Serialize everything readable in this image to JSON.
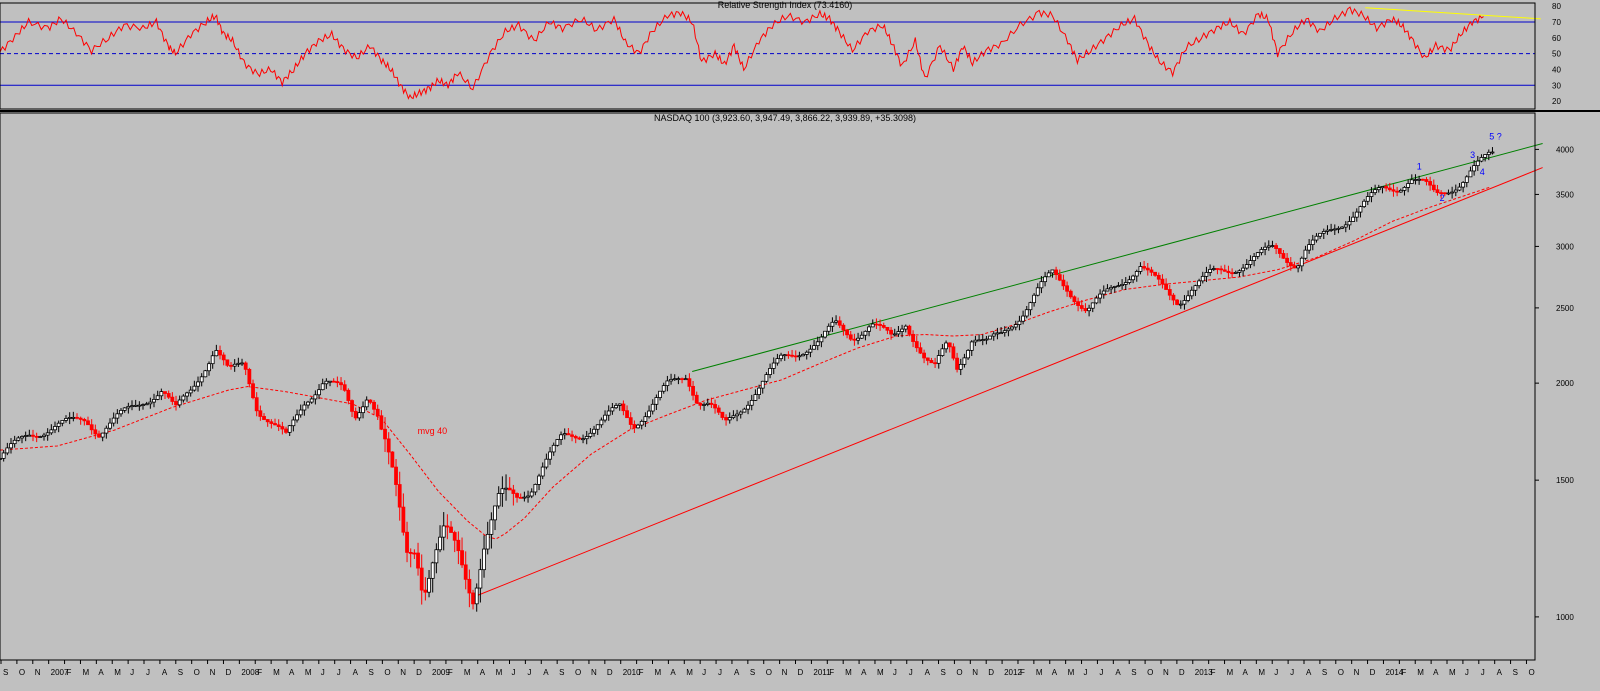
{
  "colors": {
    "background": "#c0c0c0",
    "up_candle": "#000000",
    "down_candle": "#ff0000",
    "rsi_line": "#ff0000",
    "rsi_band": "#0000cc",
    "upper_trendline": "#008000",
    "lower_trendline": "#ff0000",
    "rsi_trendline": "#ffff00",
    "wave_labels": "#0000ff",
    "ma_line": "#ff0000"
  },
  "chart_data": [
    {
      "type": "line",
      "title": "Relative Strength Index (73.4160)",
      "ylim": [
        15,
        82
      ],
      "yticks": [
        20,
        30,
        40,
        50,
        60,
        70,
        80
      ],
      "bands": [
        70,
        50,
        30
      ],
      "x_range": [
        "2006-08-25",
        "2014-09-26"
      ],
      "series": [
        {
          "values": [
            [
              2006.7,
              51
            ],
            [
              2006.78,
              61
            ],
            [
              2006.85,
              70
            ],
            [
              2006.95,
              66
            ],
            [
              2007.02,
              72
            ],
            [
              2007.1,
              63
            ],
            [
              2007.18,
              52
            ],
            [
              2007.27,
              60
            ],
            [
              2007.35,
              68
            ],
            [
              2007.45,
              66
            ],
            [
              2007.52,
              70
            ],
            [
              2007.58,
              55
            ],
            [
              2007.62,
              50
            ],
            [
              2007.7,
              62
            ],
            [
              2007.78,
              70
            ],
            [
              2007.83,
              74
            ],
            [
              2007.87,
              63
            ],
            [
              2007.92,
              58
            ],
            [
              2007.98,
              44
            ],
            [
              2008.05,
              37
            ],
            [
              2008.12,
              40
            ],
            [
              2008.18,
              32
            ],
            [
              2008.24,
              40
            ],
            [
              2008.3,
              50
            ],
            [
              2008.37,
              58
            ],
            [
              2008.44,
              62
            ],
            [
              2008.5,
              53
            ],
            [
              2008.57,
              47
            ],
            [
              2008.64,
              55
            ],
            [
              2008.7,
              46
            ],
            [
              2008.75,
              40
            ],
            [
              2008.8,
              30
            ],
            [
              2008.85,
              22
            ],
            [
              2008.9,
              25
            ],
            [
              2008.95,
              28
            ],
            [
              2009.0,
              33
            ],
            [
              2009.05,
              30
            ],
            [
              2009.1,
              38
            ],
            [
              2009.18,
              28
            ],
            [
              2009.27,
              50
            ],
            [
              2009.35,
              64
            ],
            [
              2009.42,
              68
            ],
            [
              2009.5,
              58
            ],
            [
              2009.58,
              70
            ],
            [
              2009.65,
              66
            ],
            [
              2009.75,
              72
            ],
            [
              2009.83,
              65
            ],
            [
              2009.92,
              72
            ],
            [
              2009.98,
              57
            ],
            [
              2010.05,
              50
            ],
            [
              2010.12,
              64
            ],
            [
              2010.2,
              74
            ],
            [
              2010.27,
              76
            ],
            [
              2010.33,
              70
            ],
            [
              2010.38,
              45
            ],
            [
              2010.45,
              50
            ],
            [
              2010.5,
              43
            ],
            [
              2010.55,
              55
            ],
            [
              2010.6,
              40
            ],
            [
              2010.68,
              58
            ],
            [
              2010.75,
              68
            ],
            [
              2010.83,
              74
            ],
            [
              2010.92,
              70
            ],
            [
              2011.0,
              75
            ],
            [
              2011.05,
              72
            ],
            [
              2011.1,
              64
            ],
            [
              2011.17,
              52
            ],
            [
              2011.25,
              64
            ],
            [
              2011.33,
              68
            ],
            [
              2011.38,
              56
            ],
            [
              2011.43,
              42
            ],
            [
              2011.5,
              58
            ],
            [
              2011.55,
              34
            ],
            [
              2011.63,
              55
            ],
            [
              2011.7,
              40
            ],
            [
              2011.75,
              55
            ],
            [
              2011.8,
              44
            ],
            [
              2011.87,
              52
            ],
            [
              2011.95,
              56
            ],
            [
              2012.05,
              68
            ],
            [
              2012.15,
              76
            ],
            [
              2012.22,
              74
            ],
            [
              2012.3,
              58
            ],
            [
              2012.35,
              46
            ],
            [
              2012.42,
              52
            ],
            [
              2012.5,
              60
            ],
            [
              2012.58,
              68
            ],
            [
              2012.65,
              72
            ],
            [
              2012.72,
              56
            ],
            [
              2012.78,
              45
            ],
            [
              2012.85,
              38
            ],
            [
              2012.92,
              54
            ],
            [
              2013.0,
              60
            ],
            [
              2013.08,
              66
            ],
            [
              2013.15,
              70
            ],
            [
              2013.22,
              62
            ],
            [
              2013.3,
              75
            ],
            [
              2013.35,
              72
            ],
            [
              2013.4,
              50
            ],
            [
              2013.48,
              64
            ],
            [
              2013.55,
              72
            ],
            [
              2013.62,
              64
            ],
            [
              2013.7,
              72
            ],
            [
              2013.78,
              78
            ],
            [
              2013.85,
              74
            ],
            [
              2013.92,
              66
            ],
            [
              2014.0,
              72
            ],
            [
              2014.05,
              68
            ],
            [
              2014.1,
              60
            ],
            [
              2014.17,
              47
            ],
            [
              2014.23,
              55
            ],
            [
              2014.3,
              52
            ],
            [
              2014.36,
              62
            ],
            [
              2014.42,
              70
            ],
            [
              2014.48,
              73.4
            ]
          ]
        }
      ],
      "trendline": [
        [
          2013.86,
          79
        ],
        [
          2014.78,
          72
        ]
      ]
    },
    {
      "type": "candlestick",
      "title": "NASDAQ 100 (3,923.60, 3,947.49, 3,866.22, 3,939.89, +35.3098)",
      "y_scale": "log",
      "ylim": [
        880,
        4300
      ],
      "yticks": [
        1000,
        1500,
        2000,
        2500,
        3000,
        3500,
        4000
      ],
      "x_labels": [
        "S",
        "O",
        "N",
        "2007",
        "F",
        "M",
        "A",
        "M",
        "J",
        "J",
        "A",
        "S",
        "O",
        "N",
        "D",
        "2008",
        "F",
        "M",
        "A",
        "M",
        "J",
        "J",
        "A",
        "S",
        "O",
        "N",
        "D",
        "2009",
        "F",
        "M",
        "A",
        "M",
        "J",
        "J",
        "A",
        "S",
        "O",
        "N",
        "D",
        "2010",
        "F",
        "M",
        "A",
        "M",
        "J",
        "J",
        "A",
        "S",
        "O",
        "N",
        "D",
        "2011",
        "F",
        "M",
        "A",
        "M",
        "J",
        "J",
        "A",
        "S",
        "O",
        "N",
        "D",
        "2012",
        "F",
        "M",
        "A",
        "M",
        "J",
        "J",
        "A",
        "S",
        "O",
        "N",
        "D",
        "2013",
        "F",
        "M",
        "A",
        "M",
        "J",
        "J",
        "A",
        "S",
        "O",
        "N",
        "D",
        "2014",
        "F",
        "M",
        "A",
        "M",
        "J",
        "J",
        "A",
        "S",
        "O"
      ],
      "x_start": "2006-09-01",
      "price_path": [
        [
          2006.7,
          1600
        ],
        [
          2006.85,
          1720
        ],
        [
          2007.0,
          1760
        ],
        [
          2007.15,
          1800
        ],
        [
          2007.22,
          1730
        ],
        [
          2007.3,
          1790
        ],
        [
          2007.45,
          1900
        ],
        [
          2007.55,
          1960
        ],
        [
          2007.62,
          1840
        ],
        [
          2007.7,
          1960
        ],
        [
          2007.83,
          2220
        ],
        [
          2007.9,
          2060
        ],
        [
          2007.98,
          2120
        ],
        [
          2008.05,
          1860
        ],
        [
          2008.12,
          1780
        ],
        [
          2008.2,
          1700
        ],
        [
          2008.3,
          1900
        ],
        [
          2008.4,
          2020
        ],
        [
          2008.5,
          1950
        ],
        [
          2008.56,
          1800
        ],
        [
          2008.63,
          1950
        ],
        [
          2008.68,
          1830
        ],
        [
          2008.72,
          1660
        ],
        [
          2008.78,
          1410
        ],
        [
          2008.83,
          1200
        ],
        [
          2008.88,
          1250
        ],
        [
          2008.92,
          1100
        ],
        [
          2008.97,
          1190
        ],
        [
          2009.03,
          1270
        ],
        [
          2009.1,
          1200
        ],
        [
          2009.18,
          1080
        ],
        [
          2009.24,
          1260
        ],
        [
          2009.32,
          1400
        ],
        [
          2009.4,
          1420
        ],
        [
          2009.48,
          1460
        ],
        [
          2009.55,
          1570
        ],
        [
          2009.65,
          1700
        ],
        [
          2009.75,
          1720
        ],
        [
          2009.85,
          1780
        ],
        [
          2009.95,
          1860
        ],
        [
          2010.02,
          1770
        ],
        [
          2010.1,
          1850
        ],
        [
          2010.2,
          1980
        ],
        [
          2010.3,
          2050
        ],
        [
          2010.36,
          1900
        ],
        [
          2010.42,
          1880
        ],
        [
          2010.5,
          1760
        ],
        [
          2010.58,
          1850
        ],
        [
          2010.68,
          1980
        ],
        [
          2010.8,
          2150
        ],
        [
          2010.92,
          2220
        ],
        [
          2011.0,
          2260
        ],
        [
          2011.08,
          2380
        ],
        [
          2011.17,
          2300
        ],
        [
          2011.27,
          2380
        ],
        [
          2011.38,
          2280
        ],
        [
          2011.45,
          2400
        ],
        [
          2011.55,
          2150
        ],
        [
          2011.6,
          2080
        ],
        [
          2011.67,
          2250
        ],
        [
          2011.72,
          2100
        ],
        [
          2011.8,
          2300
        ],
        [
          2011.87,
          2250
        ],
        [
          2011.95,
          2300
        ],
        [
          2012.05,
          2450
        ],
        [
          2012.15,
          2650
        ],
        [
          2012.22,
          2760
        ],
        [
          2012.3,
          2650
        ],
        [
          2012.4,
          2480
        ],
        [
          2012.5,
          2600
        ],
        [
          2012.62,
          2760
        ],
        [
          2012.68,
          2840
        ],
        [
          2012.75,
          2720
        ],
        [
          2012.83,
          2600
        ],
        [
          2012.88,
          2550
        ],
        [
          2012.95,
          2660
        ],
        [
          2013.05,
          2760
        ],
        [
          2013.15,
          2800
        ],
        [
          2013.28,
          2900
        ],
        [
          2013.38,
          2980
        ],
        [
          2013.45,
          2900
        ],
        [
          2013.5,
          2850
        ],
        [
          2013.55,
          2980
        ],
        [
          2013.65,
          3100
        ],
        [
          2013.75,
          3240
        ],
        [
          2013.85,
          3400
        ],
        [
          2013.95,
          3550
        ],
        [
          2014.03,
          3580
        ],
        [
          2014.1,
          3680
        ],
        [
          2014.17,
          3600
        ],
        [
          2014.23,
          3480
        ],
        [
          2014.3,
          3560
        ],
        [
          2014.36,
          3640
        ],
        [
          2014.42,
          3760
        ],
        [
          2014.48,
          3860
        ],
        [
          2014.52,
          3940
        ]
      ],
      "moving_average": {
        "label": "mvg 40",
        "values": [
          [
            2006.7,
            1640
          ],
          [
            2007.0,
            1660
          ],
          [
            2007.3,
            1740
          ],
          [
            2007.6,
            1860
          ],
          [
            2007.9,
            1960
          ],
          [
            2008.0,
            1980
          ],
          [
            2008.2,
            1950
          ],
          [
            2008.4,
            1910
          ],
          [
            2008.55,
            1880
          ],
          [
            2008.7,
            1800
          ],
          [
            2008.85,
            1620
          ],
          [
            2009.0,
            1450
          ],
          [
            2009.15,
            1330
          ],
          [
            2009.25,
            1270
          ],
          [
            2009.3,
            1260
          ],
          [
            2009.35,
            1280
          ],
          [
            2009.45,
            1340
          ],
          [
            2009.6,
            1470
          ],
          [
            2009.8,
            1620
          ],
          [
            2010.0,
            1740
          ],
          [
            2010.2,
            1820
          ],
          [
            2010.4,
            1900
          ],
          [
            2010.6,
            1960
          ],
          [
            2010.8,
            2020
          ],
          [
            2011.0,
            2120
          ],
          [
            2011.2,
            2220
          ],
          [
            2011.4,
            2300
          ],
          [
            2011.55,
            2310
          ],
          [
            2011.7,
            2300
          ],
          [
            2011.85,
            2310
          ],
          [
            2012.0,
            2370
          ],
          [
            2012.2,
            2470
          ],
          [
            2012.4,
            2560
          ],
          [
            2012.6,
            2640
          ],
          [
            2012.8,
            2680
          ],
          [
            2013.0,
            2710
          ],
          [
            2013.2,
            2740
          ],
          [
            2013.4,
            2800
          ],
          [
            2013.6,
            2900
          ],
          [
            2013.8,
            3050
          ],
          [
            2014.0,
            3230
          ],
          [
            2014.2,
            3370
          ],
          [
            2014.4,
            3500
          ],
          [
            2014.52,
            3580
          ]
        ]
      },
      "trendlines": [
        {
          "name": "upper",
          "points": [
            [
              2010.33,
              2070
            ],
            [
              2014.79,
              4070
            ]
          ]
        },
        {
          "name": "lower",
          "points": [
            [
              2009.18,
              1060
            ],
            [
              2014.79,
              3790
            ]
          ]
        }
      ],
      "wave_labels": [
        {
          "text": "1",
          "x": 2014.13,
          "y": 3770
        },
        {
          "text": "2",
          "x": 2014.25,
          "y": 3430
        },
        {
          "text": "3",
          "x": 2014.41,
          "y": 3900
        },
        {
          "text": "4",
          "x": 2014.46,
          "y": 3710
        },
        {
          "text": "5 ?",
          "x": 2014.51,
          "y": 4120
        }
      ]
    }
  ]
}
